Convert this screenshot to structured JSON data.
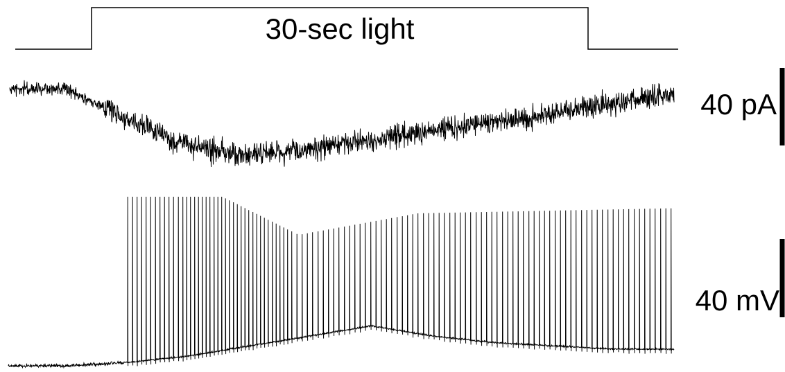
{
  "chart_data": [
    {
      "type": "line",
      "title": "",
      "series": [
        {
          "values": [
            0,
            1,
            1,
            0
          ]
        }
      ],
      "annotations": [
        "30-sec light"
      ]
    },
    {
      "type": "line",
      "title": "",
      "series": [
        {
          "values": [
            0,
            0,
            -1,
            -2,
            -2.5,
            -2.4,
            -2.1,
            -1.8,
            -1.5,
            -1.2,
            -0.9,
            -0.5,
            -0.2
          ]
        }
      ],
      "annotations": [
        "40 pA"
      ]
    },
    {
      "type": "line",
      "title": "",
      "series": [
        {
          "values": [
            0,
            0,
            0.1,
            0.3,
            0.6,
            0.9,
            1.2,
            0.9,
            0.7,
            0.6,
            0.5,
            0.5
          ]
        }
      ],
      "annotations": [
        "40 mV"
      ]
    }
  ],
  "colors": {
    "trace": "#000000",
    "background": "#ffffff"
  }
}
